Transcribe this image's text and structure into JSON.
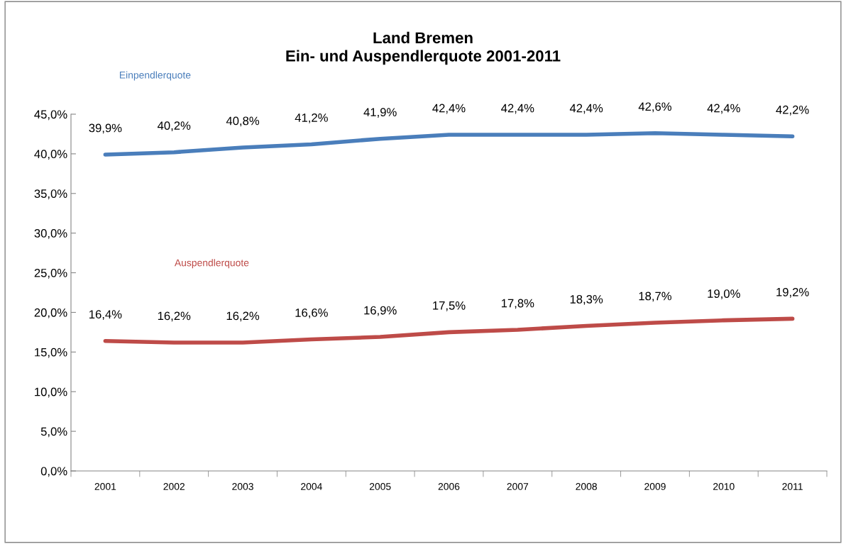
{
  "chart_data": {
    "type": "line",
    "title": "Land Bremen\nEin- und Auspendlerquote 2001-2011",
    "categories": [
      "2001",
      "2002",
      "2003",
      "2004",
      "2005",
      "2006",
      "2007",
      "2008",
      "2009",
      "2010",
      "2011"
    ],
    "series": [
      {
        "name": "Einpendlerquote",
        "color": "#4a7ebb",
        "values": [
          39.9,
          40.2,
          40.8,
          41.2,
          41.9,
          42.4,
          42.4,
          42.4,
          42.6,
          42.4,
          42.2
        ],
        "value_labels": [
          "39,9%",
          "40,2%",
          "40,8%",
          "41,2%",
          "41,9%",
          "42,4%",
          "42,4%",
          "42,4%",
          "42,6%",
          "42,4%",
          "42,2%"
        ]
      },
      {
        "name": "Auspendlerquote",
        "color": "#be4b48",
        "values": [
          16.4,
          16.2,
          16.2,
          16.6,
          16.9,
          17.5,
          17.8,
          18.3,
          18.7,
          19.0,
          19.2
        ],
        "value_labels": [
          "16,4%",
          "16,2%",
          "16,2%",
          "16,6%",
          "16,9%",
          "17,5%",
          "17,8%",
          "18,3%",
          "18,7%",
          "19,0%",
          "19,2%"
        ]
      }
    ],
    "ylim": [
      0,
      45
    ],
    "yticks": [
      {
        "value": 0,
        "label": "0,0%"
      },
      {
        "value": 5,
        "label": "5,0%"
      },
      {
        "value": 10,
        "label": "10,0%"
      },
      {
        "value": 15,
        "label": "15,0%"
      },
      {
        "value": 20,
        "label": "20,0%"
      },
      {
        "value": 25,
        "label": "25,0%"
      },
      {
        "value": 30,
        "label": "30,0%"
      },
      {
        "value": 35,
        "label": "35,0%"
      },
      {
        "value": 40,
        "label": "40,0%"
      },
      {
        "value": 45,
        "label": "45,0%"
      }
    ],
    "grid": false,
    "legend": false,
    "marker": "none",
    "line_style": "solid"
  }
}
